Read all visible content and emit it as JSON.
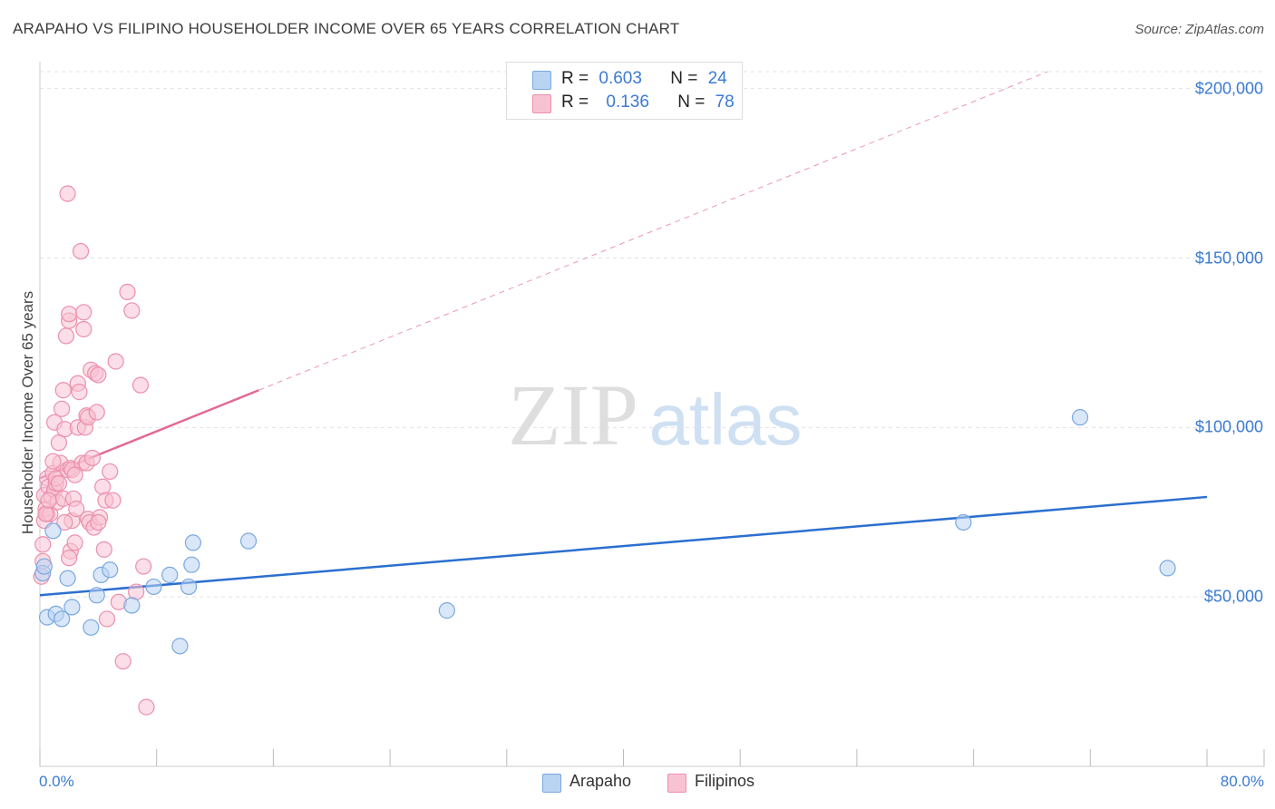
{
  "header": {
    "title": "ARAPAHO VS FILIPINO HOUSEHOLDER INCOME OVER 65 YEARS CORRELATION CHART",
    "source": "Source: ZipAtlas.com"
  },
  "legend": {
    "r_label": "R =",
    "n_label": "N =",
    "rows": [
      {
        "name": "Arapaho",
        "r": "0.603",
        "n": "24"
      },
      {
        "name": "Filipinos",
        "r": "0.136",
        "n": "78"
      }
    ]
  },
  "colors": {
    "arapaho_fill": "#b9d3f3",
    "arapaho_stroke": "#7aa8e0",
    "arapaho_line": "#2b6fcf",
    "filipinos_fill": "#f7c3d3",
    "filipinos_stroke": "#ec8fac",
    "filipinos_line": "#e46a92",
    "grid": "#e3e3e3",
    "axis_label": "#3a7bd5"
  },
  "watermark": {
    "zip": "ZIP",
    "atlas": "atlas"
  },
  "chart_data": {
    "type": "scatter",
    "title": "ARAPAHO VS FILIPINO HOUSEHOLDER INCOME OVER 65 YEARS CORRELATION CHART",
    "xlabel": "",
    "ylabel": "Householder Income Over 65 years",
    "xlim": [
      0,
      80
    ],
    "ylim": [
      0,
      205000
    ],
    "x_tick_labels": [
      "0.0%",
      "80.0%"
    ],
    "y_ticks": [
      50000,
      100000,
      150000,
      200000
    ],
    "y_tick_labels": [
      "$50,000",
      "$100,000",
      "$150,000",
      "$200,000"
    ],
    "grid": true,
    "series": [
      {
        "name": "Arapaho",
        "r": 0.603,
        "n": 24,
        "x": [
          0.2,
          0.5,
          0.9,
          1.1,
          1.5,
          1.9,
          2.2,
          3.5,
          3.9,
          4.2,
          4.8,
          6.3,
          7.8,
          8.9,
          9.6,
          10.2,
          10.4,
          10.5,
          14.3,
          27.9,
          63.3,
          71.3,
          77.3,
          0.3
        ],
        "y": [
          57000,
          44000,
          69500,
          45000,
          43500,
          55500,
          47000,
          41000,
          50500,
          56500,
          58000,
          47500,
          53000,
          56500,
          35500,
          53000,
          59500,
          66000,
          66500,
          46000,
          72000,
          103000,
          58500,
          59000
        ],
        "trend": {
          "x": [
            0,
            80
          ],
          "y": [
            50500,
            79500
          ],
          "style": "solid"
        }
      },
      {
        "name": "Filipinos",
        "r": 0.136,
        "n": 78,
        "x": [
          0.1,
          0.2,
          0.3,
          0.3,
          0.4,
          0.5,
          0.5,
          0.6,
          0.7,
          0.8,
          0.9,
          1.0,
          1.0,
          1.1,
          1.1,
          1.2,
          1.3,
          1.4,
          1.5,
          1.6,
          1.6,
          1.7,
          1.8,
          1.9,
          1.9,
          2.0,
          2.0,
          2.1,
          2.1,
          2.2,
          2.2,
          2.3,
          2.4,
          2.5,
          2.6,
          2.6,
          2.7,
          2.8,
          2.9,
          3.0,
          3.0,
          3.1,
          3.2,
          3.2,
          3.3,
          3.3,
          3.4,
          3.5,
          3.6,
          3.7,
          3.8,
          3.9,
          4.0,
          4.1,
          4.3,
          4.4,
          4.5,
          4.6,
          4.8,
          5.0,
          5.2,
          5.4,
          5.7,
          6.0,
          6.3,
          6.6,
          6.9,
          7.1,
          7.3,
          0.2,
          0.4,
          0.6,
          0.9,
          1.3,
          1.7,
          2.0,
          2.4,
          4.0
        ],
        "y": [
          56000,
          60500,
          72500,
          80000,
          76000,
          85000,
          74500,
          82500,
          74500,
          79500,
          86500,
          101500,
          81500,
          83500,
          85000,
          78000,
          95500,
          89500,
          105500,
          111000,
          79000,
          99500,
          127000,
          169000,
          87500,
          131500,
          133500,
          88000,
          63500,
          87500,
          72500,
          79000,
          66000,
          76000,
          100000,
          113000,
          110500,
          152000,
          89500,
          134000,
          129000,
          100000,
          89500,
          103500,
          73000,
          103000,
          72000,
          117000,
          91000,
          70500,
          116000,
          104500,
          115500,
          73500,
          82500,
          64000,
          78500,
          43500,
          87000,
          78500,
          119500,
          48500,
          31000,
          140000,
          134500,
          51500,
          112500,
          59000,
          17500,
          65500,
          74500,
          78500,
          90000,
          83500,
          72000,
          61500,
          86000,
          72000
        ],
        "trend": {
          "x": [
            0,
            15
          ],
          "y": [
            85000,
            111000
          ],
          "style": "solid"
        },
        "trend_extension": {
          "x": [
            15,
            80
          ],
          "y": [
            111000,
            224000
          ],
          "style": "dashed"
        }
      }
    ]
  }
}
